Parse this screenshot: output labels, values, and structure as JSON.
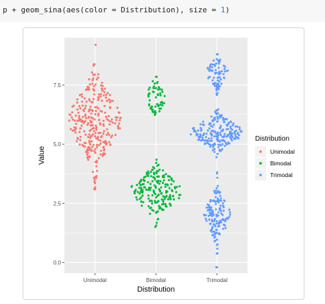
{
  "code_cell": {
    "prefix": "p + geom_sina(aes(color = Distribution), size = ",
    "size_value": "1",
    "suffix": ")"
  },
  "chart_data": {
    "type": "scatter",
    "subtype": "sina",
    "xlabel": "Distribution",
    "ylabel": "Value",
    "categories": [
      "Unimodal",
      "Bimodal",
      "Trimodal"
    ],
    "y_ticks": [
      "0.0",
      "2.5",
      "5.0",
      "7.5"
    ],
    "y_tick_values": [
      0,
      2.5,
      5.0,
      7.5
    ],
    "ylim": [
      -0.45,
      9.5
    ],
    "grid": true,
    "legend": {
      "title": "Distribution",
      "position": "right",
      "entries": [
        {
          "label": "Unimodal",
          "color": "#F8766D"
        },
        {
          "label": "Bimodal",
          "color": "#00BA38"
        },
        {
          "label": "Trimodal",
          "color": "#619CFF"
        }
      ]
    },
    "colors": {
      "panel": "#EBEBEB",
      "grid": "#FFFFFF",
      "point_size": 1
    },
    "series": [
      {
        "category": "Unimodal",
        "components": [
          {
            "center": 6.0,
            "sd": 1.0,
            "n": 300
          }
        ],
        "min": 3.1,
        "max": 9.2
      },
      {
        "category": "Bimodal",
        "components": [
          {
            "center": 3.0,
            "sd": 0.55,
            "n": 200
          },
          {
            "center": 7.0,
            "sd": 0.45,
            "n": 60
          }
        ],
        "min": 1.5,
        "max": 7.85
      },
      {
        "category": "Trimodal",
        "components": [
          {
            "center": 2.0,
            "sd": 0.6,
            "n": 150
          },
          {
            "center": 5.5,
            "sd": 0.4,
            "n": 200
          },
          {
            "center": 8.0,
            "sd": 0.35,
            "n": 80
          }
        ],
        "min": -0.2,
        "max": 8.8
      }
    ]
  }
}
